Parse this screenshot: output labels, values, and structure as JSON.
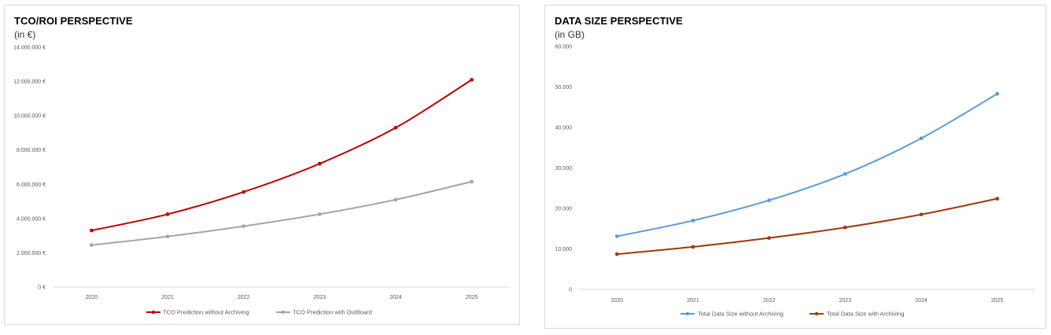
{
  "chart_data": [
    {
      "type": "line",
      "title": "TCO/ROI PERSPECTIVE",
      "subtitle": "(in €)",
      "categories": [
        "2020",
        "2021",
        "2022",
        "2023",
        "2024",
        "2025"
      ],
      "ylim": [
        0,
        14000000
      ],
      "yticks": [
        "0 €",
        "2.000.000 €",
        "4.000.000 €",
        "6.000.000 €",
        "8.000.000 €",
        "10.000.000 €",
        "12.000.000 €",
        "14.000.000 €"
      ],
      "grid": false,
      "legend": "bottom",
      "series": [
        {
          "name": "TCO Prediction without Archiving",
          "color": "#c00000",
          "values": [
            3300000,
            4250000,
            5550000,
            7200000,
            9300000,
            12100000
          ]
        },
        {
          "name": "TCO Prediction with OutBoard",
          "color": "#a5a5a5",
          "values": [
            2450000,
            2950000,
            3550000,
            4250000,
            5100000,
            6150000
          ]
        }
      ]
    },
    {
      "type": "line",
      "title": "DATA SIZE PERSPECTIVE",
      "subtitle": "(in GB)",
      "categories": [
        "2020",
        "2021",
        "2022",
        "2023",
        "2024",
        "2025"
      ],
      "ylim": [
        0,
        60000
      ],
      "yticks": [
        "0",
        "10.000",
        "20.000",
        "30.000",
        "40.000",
        "50.000",
        "60.000"
      ],
      "grid": false,
      "legend": "bottom",
      "series": [
        {
          "name": "Total Data Size without Archiving",
          "color": "#5b9bd5",
          "values": [
            13100,
            17000,
            22000,
            28500,
            37300,
            48300
          ]
        },
        {
          "name": "Total Data Size with Archiving",
          "color": "#9e3a0e",
          "values": [
            8700,
            10500,
            12700,
            15300,
            18500,
            22400
          ]
        }
      ]
    }
  ]
}
